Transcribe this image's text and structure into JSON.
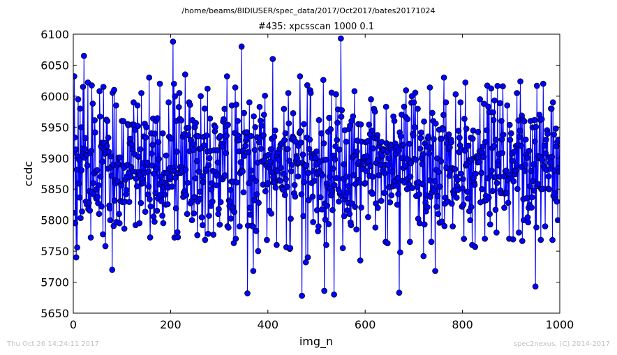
{
  "chart_data": {
    "type": "line",
    "suptitle": "/home/beams/8IDIUSER/spec_data/2017/Oct2017/bates20171024",
    "title": "#435: xpcsscan 1000 0.1",
    "xlabel": "img_n",
    "ylabel": "ccdc",
    "xlim": [
      0,
      1000
    ],
    "ylim": [
      5650,
      6100
    ],
    "xticks": [
      0,
      200,
      400,
      600,
      800,
      1000
    ],
    "yticks": [
      5650,
      5700,
      5750,
      5800,
      5850,
      5900,
      5950,
      6000,
      6050,
      6100
    ],
    "grid": false,
    "line_color": "#0000ff",
    "marker": "circle",
    "n_points": 1000,
    "x_step": 1,
    "sampled_points": [
      [
        0,
        5812
      ],
      [
        2,
        6032
      ],
      [
        4,
        5795
      ],
      [
        6,
        5740
      ],
      [
        8,
        5756
      ],
      [
        10,
        5995
      ],
      [
        14,
        5980
      ],
      [
        20,
        6015
      ],
      [
        22,
        6065
      ],
      [
        26,
        5830
      ],
      [
        30,
        6022
      ],
      [
        36,
        5772
      ],
      [
        40,
        5988
      ],
      [
        48,
        5850
      ],
      [
        54,
        6008
      ],
      [
        58,
        5822
      ],
      [
        62,
        6015
      ],
      [
        66,
        5758
      ],
      [
        70,
        5960
      ],
      [
        76,
        5800
      ],
      [
        80,
        5720
      ],
      [
        84,
        6010
      ],
      [
        88,
        5985
      ],
      [
        94,
        5810
      ],
      [
        100,
        5960
      ],
      [
        106,
        5830
      ],
      [
        112,
        5955
      ],
      [
        118,
        5870
      ],
      [
        124,
        5990
      ],
      [
        128,
        5792
      ],
      [
        132,
        5985
      ],
      [
        136,
        5795
      ],
      [
        140,
        6005
      ],
      [
        144,
        5860
      ],
      [
        150,
        5950
      ],
      [
        156,
        6030
      ],
      [
        160,
        5940
      ],
      [
        166,
        5875
      ],
      [
        170,
        5960
      ],
      [
        174,
        5835
      ],
      [
        178,
        6020
      ],
      [
        184,
        5940
      ],
      [
        190,
        5825
      ],
      [
        196,
        5990
      ],
      [
        200,
        5870
      ],
      [
        205,
        6088
      ],
      [
        208,
        5772
      ],
      [
        212,
        5960
      ],
      [
        218,
        6005
      ],
      [
        224,
        5880
      ],
      [
        230,
        6035
      ],
      [
        234,
        5810
      ],
      [
        238,
        5990
      ],
      [
        244,
        5800
      ],
      [
        250,
        5950
      ],
      [
        256,
        5830
      ],
      [
        262,
        6000
      ],
      [
        266,
        5792
      ],
      [
        270,
        5980
      ],
      [
        276,
        6012
      ],
      [
        280,
        5900
      ],
      [
        286,
        5830
      ],
      [
        292,
        5950
      ],
      [
        298,
        5810
      ],
      [
        304,
        5920
      ],
      [
        310,
        5870
      ],
      [
        316,
        6032
      ],
      [
        322,
        5830
      ],
      [
        326,
        5985
      ],
      [
        330,
        5763
      ],
      [
        334,
        5770
      ],
      [
        338,
        5960
      ],
      [
        342,
        5790
      ],
      [
        346,
        6080
      ],
      [
        350,
        5845
      ],
      [
        354,
        5920
      ],
      [
        358,
        5682
      ],
      [
        362,
        5990
      ],
      [
        366,
        5880
      ],
      [
        370,
        5718
      ],
      [
        374,
        5950
      ],
      [
        380,
        5750
      ],
      [
        386,
        5915
      ],
      [
        392,
        5970
      ],
      [
        398,
        5768
      ],
      [
        404,
        5890
      ],
      [
        410,
        6060
      ],
      [
        414,
        5860
      ],
      [
        418,
        5760
      ],
      [
        424,
        5915
      ],
      [
        430,
        5850
      ],
      [
        436,
        5940
      ],
      [
        442,
        6005
      ],
      [
        446,
        5755
      ],
      [
        450,
        5930
      ],
      [
        456,
        5838
      ],
      [
        460,
        5900
      ],
      [
        466,
        6032
      ],
      [
        470,
        5678
      ],
      [
        474,
        5955
      ],
      [
        478,
        5732
      ],
      [
        482,
        5740
      ],
      [
        488,
        6005
      ],
      [
        492,
        5838
      ],
      [
        498,
        5900
      ],
      [
        504,
        5790
      ],
      [
        510,
        5940
      ],
      [
        516,
        5686
      ],
      [
        520,
        5760
      ],
      [
        526,
        5965
      ],
      [
        530,
        5840
      ],
      [
        536,
        5680
      ],
      [
        540,
        6003
      ],
      [
        546,
        5830
      ],
      [
        550,
        6093
      ],
      [
        554,
        5755
      ],
      [
        558,
        5945
      ],
      [
        562,
        5870
      ],
      [
        568,
        5810
      ],
      [
        572,
        5960
      ],
      [
        578,
        6008
      ],
      [
        582,
        5785
      ],
      [
        586,
        5955
      ],
      [
        590,
        5735
      ],
      [
        596,
        5895
      ],
      [
        600,
        5860
      ],
      [
        606,
        5805
      ],
      [
        612,
        5995
      ],
      [
        616,
        5870
      ],
      [
        620,
        5975
      ],
      [
        626,
        5820
      ],
      [
        630,
        5925
      ],
      [
        636,
        5880
      ],
      [
        642,
        5765
      ],
      [
        648,
        5900
      ],
      [
        654,
        5840
      ],
      [
        660,
        5960
      ],
      [
        666,
        5825
      ],
      [
        670,
        5683
      ],
      [
        676,
        5900
      ],
      [
        680,
        5983
      ],
      [
        686,
        5850
      ],
      [
        692,
        5765
      ],
      [
        696,
        6000
      ],
      [
        700,
        5990
      ],
      [
        706,
        5860
      ],
      [
        712,
        5795
      ],
      [
        716,
        5900
      ],
      [
        720,
        5742
      ],
      [
        726,
        5840
      ],
      [
        730,
        5935
      ],
      [
        736,
        5765
      ],
      [
        740,
        5960
      ],
      [
        744,
        5718
      ],
      [
        750,
        5810
      ],
      [
        756,
        5895
      ],
      [
        762,
        6030
      ],
      [
        766,
        5990
      ],
      [
        770,
        5830
      ],
      [
        776,
        5930
      ],
      [
        780,
        5790
      ],
      [
        786,
        6003
      ],
      [
        790,
        5865
      ],
      [
        796,
        5990
      ],
      [
        802,
        5825
      ],
      [
        806,
        6022
      ],
      [
        812,
        5920
      ],
      [
        816,
        5800
      ],
      [
        820,
        5760
      ],
      [
        826,
        5757
      ],
      [
        830,
        5900
      ],
      [
        836,
        5995
      ],
      [
        840,
        5850
      ],
      [
        846,
        5770
      ],
      [
        850,
        5945
      ],
      [
        856,
        5810
      ],
      [
        860,
        5880
      ],
      [
        866,
        5993
      ],
      [
        870,
        5780
      ],
      [
        876,
        5870
      ],
      [
        880,
        5960
      ],
      [
        886,
        5820
      ],
      [
        892,
        5985
      ],
      [
        896,
        5770
      ],
      [
        900,
        5940
      ],
      [
        906,
        5880
      ],
      [
        912,
        6005
      ],
      [
        916,
        5780
      ],
      [
        920,
        5920
      ],
      [
        926,
        5800
      ],
      [
        930,
        5930
      ],
      [
        936,
        5820
      ],
      [
        940,
        5960
      ],
      [
        946,
        5890
      ],
      [
        950,
        5693
      ],
      [
        954,
        5855
      ],
      [
        958,
        5970
      ],
      [
        962,
        5850
      ],
      [
        966,
        6020
      ],
      [
        970,
        5790
      ],
      [
        974,
        5945
      ],
      [
        978,
        5850
      ],
      [
        982,
        5980
      ],
      [
        986,
        5990
      ],
      [
        990,
        5880
      ],
      [
        994,
        5830
      ],
      [
        996,
        5800
      ],
      [
        998,
        5930
      ]
    ]
  },
  "footer": {
    "left": "Thu Oct 26 14:24:11 2017",
    "right": "spec2nexus, (C) 2014-2017"
  }
}
